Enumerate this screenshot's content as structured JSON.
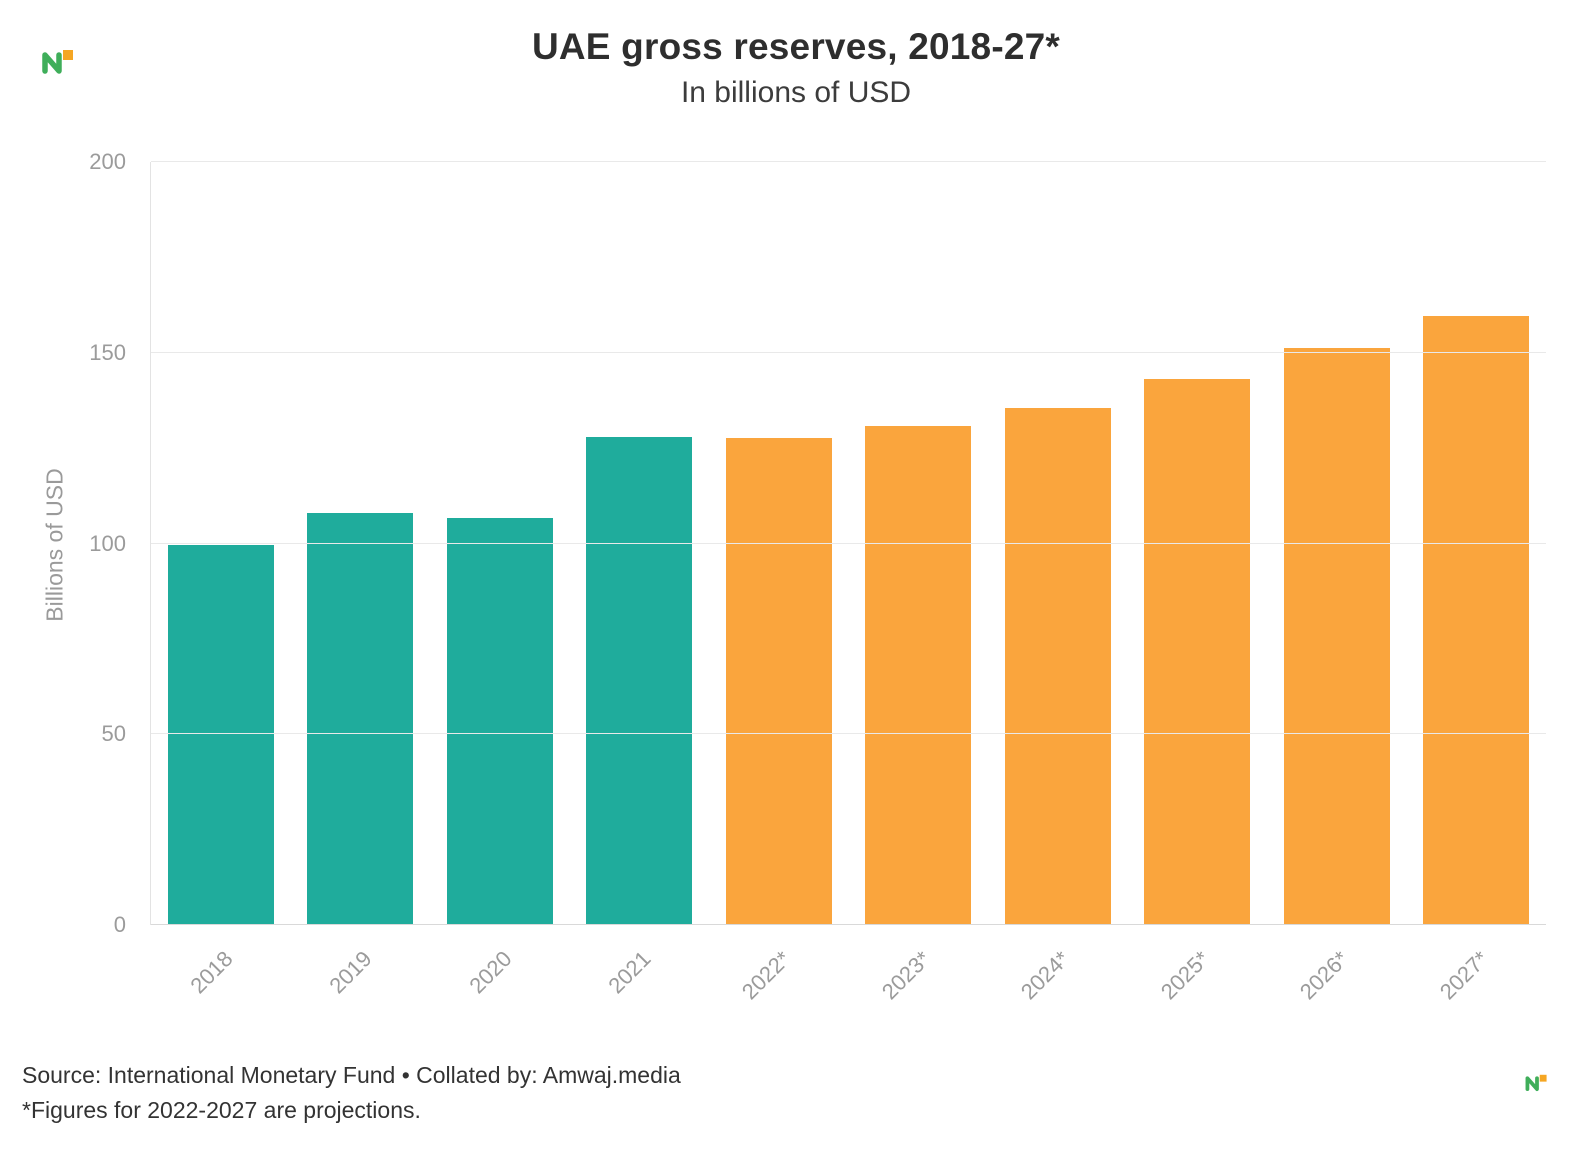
{
  "header": {
    "title": "UAE gross reserves, 2018-27*",
    "subtitle": "In billions of USD"
  },
  "chart_data": {
    "type": "bar",
    "title": "UAE gross reserves, 2018-27*",
    "subtitle": "In billions of USD",
    "xlabel": "",
    "ylabel": "Billions of USD",
    "ylim": [
      0,
      200
    ],
    "yticks": [
      0,
      50,
      100,
      150,
      200
    ],
    "grid": true,
    "legend": "none",
    "categories": [
      "2018",
      "2019",
      "2020",
      "2021",
      "2022*",
      "2023*",
      "2024*",
      "2025*",
      "2026*",
      "2027*"
    ],
    "values": [
      99.5,
      108.1,
      106.7,
      127.8,
      127.6,
      130.9,
      135.6,
      143.2,
      151.3,
      159.7
    ],
    "projection_from_index": 4,
    "colors": {
      "actual": "#1FAC9C",
      "projection": "#FAA53D"
    }
  },
  "footer": {
    "source": "Source: International Monetary Fund • Collated by: Amwaj.media",
    "footnote": "*Figures for 2022-2027 are projections."
  },
  "icons": {
    "brand_logo": "amwaj-media-logo",
    "brand_logo_small": "amwaj-media-logo"
  }
}
